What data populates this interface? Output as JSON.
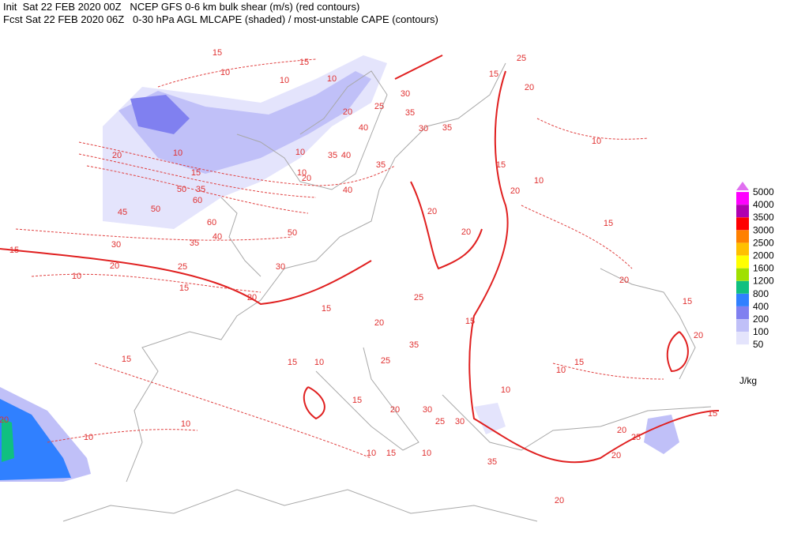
{
  "header": {
    "line1": "Init  Sat 22 FEB 2020 00Z   NCEP GFS 0-6 km bulk shear (m/s) (red contours)",
    "line2": "Fcst Sat 22 FEB 2020 06Z   0-30 hPa AGL MLCAPE (shaded) / most-unstable CAPE (contours)"
  },
  "legend": {
    "unit": "J/kg",
    "items": [
      {
        "label": "5000",
        "color": "#e070f0"
      },
      {
        "label": "4000",
        "color": "#ff00ff"
      },
      {
        "label": "3500",
        "color": "#b000b0"
      },
      {
        "label": "3000",
        "color": "#ff0000"
      },
      {
        "label": "2500",
        "color": "#ff8000"
      },
      {
        "label": "2000",
        "color": "#ffc000"
      },
      {
        "label": "1600",
        "color": "#ffff00"
      },
      {
        "label": "1200",
        "color": "#a0e000"
      },
      {
        "label": "800",
        "color": "#10c080"
      },
      {
        "label": "400",
        "color": "#3080ff"
      },
      {
        "label": "200",
        "color": "#8080f0"
      },
      {
        "label": "100",
        "color": "#c0c0f8"
      },
      {
        "label": "50",
        "color": "#e4e4fc"
      }
    ]
  },
  "contour_labels": [
    "15",
    "10",
    "15",
    "10",
    "10",
    "25",
    "15",
    "20",
    "10",
    "30",
    "25",
    "35",
    "30",
    "35",
    "40",
    "20",
    "10",
    "15",
    "20",
    "50",
    "35",
    "60",
    "10",
    "10",
    "20",
    "35",
    "40",
    "35",
    "40",
    "45",
    "50",
    "60",
    "40",
    "35",
    "50",
    "30",
    "25",
    "30",
    "15",
    "20",
    "10",
    "15",
    "20",
    "15",
    "20",
    "25",
    "35",
    "20",
    "20",
    "15",
    "20",
    "10",
    "15",
    "20",
    "15",
    "20",
    "15",
    "10",
    "10",
    "20",
    "30",
    "25",
    "30",
    "35",
    "20",
    "20",
    "25",
    "15",
    "20",
    "10",
    "10",
    "15",
    "10",
    "10",
    "15",
    "10",
    "15",
    "15",
    "25",
    "15",
    "20"
  ]
}
